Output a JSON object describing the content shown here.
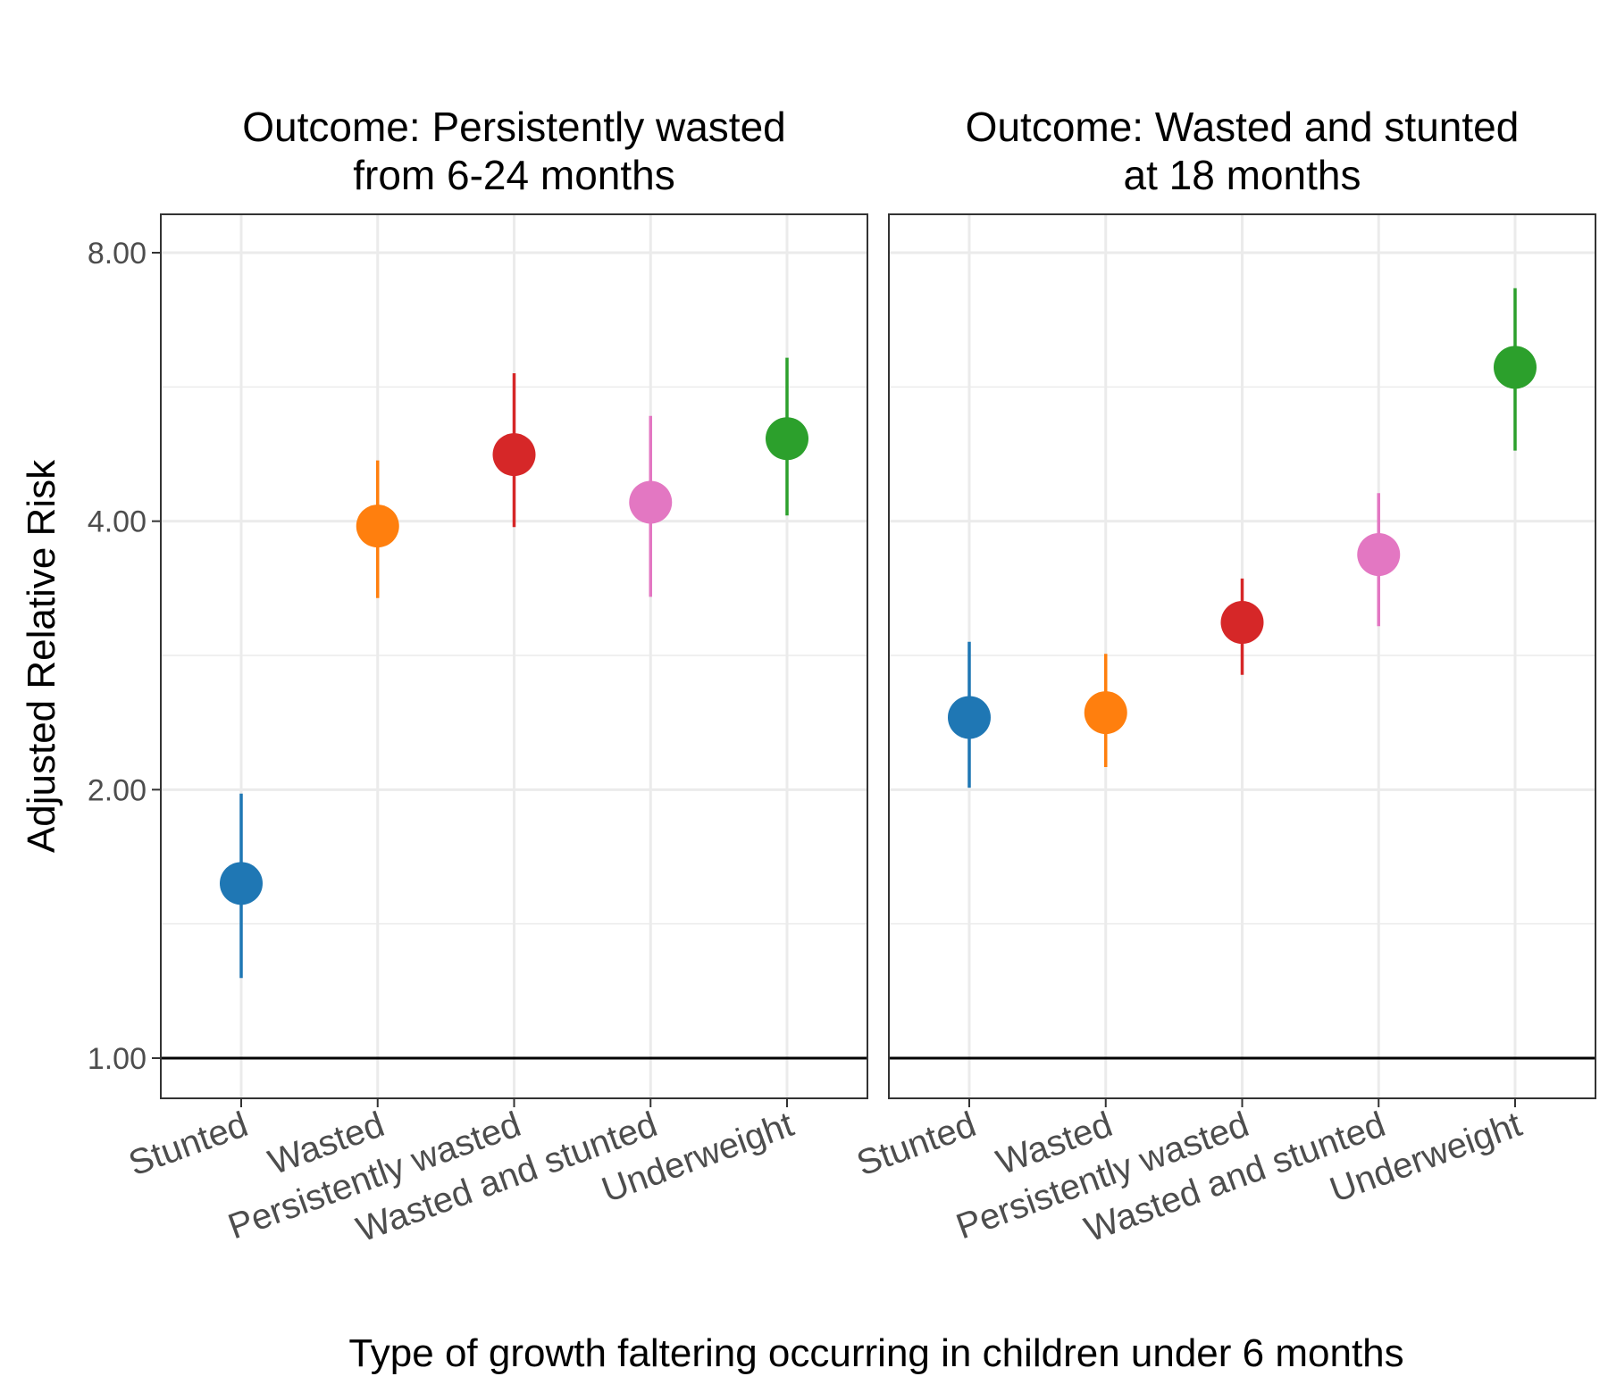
{
  "chart_data": {
    "type": "scatter",
    "subtype": "point-range, faceted",
    "ylabel": "Adjusted Relative Risk",
    "xlabel": "Type of growth faltering occurring in children under 6 months",
    "y_scale": "log",
    "ylim": [
      0.95,
      8.4
    ],
    "y_ticks": [
      1,
      2,
      4,
      8
    ],
    "y_tick_labels": [
      "1.00",
      "2.00",
      "4.00",
      "8.00"
    ],
    "reference_line": 1,
    "grid": true,
    "legend": "none",
    "categories": [
      "Stunted",
      "Wasted",
      "Persistently wasted",
      "Wasted and stunted",
      "Underweight"
    ],
    "colors": [
      "#1f77b4",
      "#ff7f0e",
      "#d62728",
      "#e377c2",
      "#2ca02c"
    ],
    "panels": [
      {
        "title_lines": [
          "Outcome: Persistently wasted",
          "from 6-24 months"
        ],
        "estimates": [
          1.57,
          3.95,
          4.75,
          4.2,
          4.95
        ],
        "lower": [
          1.23,
          3.28,
          3.94,
          3.29,
          4.06
        ],
        "upper": [
          1.98,
          4.68,
          5.86,
          5.25,
          6.1
        ]
      },
      {
        "title_lines": [
          "Outcome: Wasted and stunted",
          "at 18 months"
        ],
        "estimates": [
          2.41,
          2.44,
          3.08,
          3.67,
          5.95
        ],
        "lower": [
          2.01,
          2.12,
          2.69,
          3.05,
          4.8
        ],
        "upper": [
          2.93,
          2.84,
          3.45,
          4.3,
          7.3
        ]
      }
    ]
  }
}
